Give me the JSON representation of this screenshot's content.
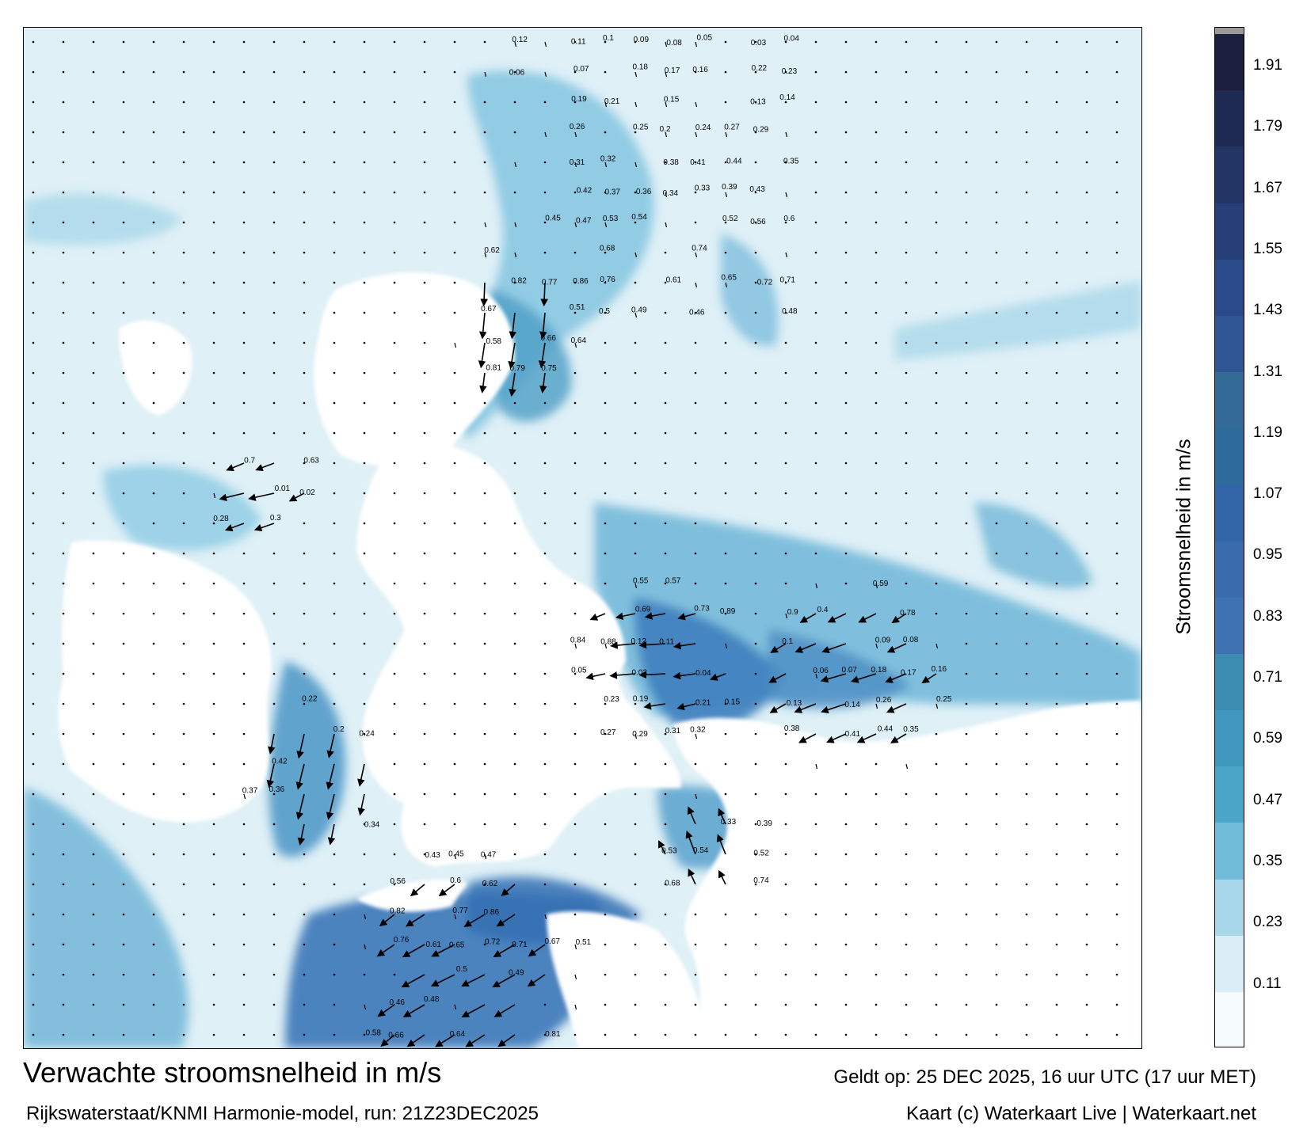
{
  "map": {
    "land_color": "#ffffff",
    "sea_color_low": "#eaf5fa",
    "sea_color_high": "#2a63a3",
    "arrow_color": "#000000",
    "velocity_labels": [
      "0.12",
      "0.11",
      "0.1",
      "0.09",
      "0.08",
      "0.05",
      "0.03",
      "0.04",
      "0.06",
      "0.07",
      "0.18",
      "0.17",
      "0.16",
      "0.22",
      "0.23",
      "0.19",
      "0.21",
      "0.15",
      "0.13",
      "0.14",
      "0.26",
      "0.25",
      "0.2",
      "0.24",
      "0.27",
      "0.29",
      "0.31",
      "0.32",
      "0.38",
      "0.41",
      "0.44",
      "0.35",
      "0.42",
      "0.37",
      "0.36",
      "0.34",
      "0.33",
      "0.39",
      "0.43",
      "0.45",
      "0.47",
      "0.53",
      "0.54",
      "0.52",
      "0.56",
      "0.6",
      "0.62",
      "0.68",
      "0.74",
      "0.82",
      "0.77",
      "0.86",
      "0.76",
      "0.61",
      "0.65",
      "0.72",
      "0.71",
      "0.67",
      "0.51",
      "0.5",
      "0.49",
      "0.46",
      "0.48",
      "0.58",
      "0.66",
      "0.64",
      "0.81",
      "0.79",
      "0.75",
      "0.7",
      "0.63",
      "0.01",
      "0.02",
      "0.28",
      "0.3",
      "0.55",
      "0.57",
      "0.59",
      "0.69",
      "0.73",
      "0.89",
      "0.9",
      "0.4",
      "0.78",
      "0.84",
      "0.88"
    ]
  },
  "colorbar": {
    "label": "Stroomsnelheid in m/s",
    "ticks": [
      "1.91",
      "1.79",
      "1.67",
      "1.55",
      "1.43",
      "1.31",
      "1.19",
      "1.07",
      "0.95",
      "0.83",
      "0.71",
      "0.59",
      "0.47",
      "0.35",
      "0.23",
      "0.11"
    ],
    "colors": [
      "#1b1f3d",
      "#1e2a52",
      "#223565",
      "#263f78",
      "#2b4a8a",
      "#2f5595",
      "#346b96",
      "#2f6a9c",
      "#3265a8",
      "#3a6cad",
      "#3e72b0",
      "#3c8bb0",
      "#3f97bd",
      "#4aa5c9",
      "#6fbbd8",
      "#a8d6ea",
      "#d9eef7",
      "#f5fbfd"
    ]
  },
  "footer": {
    "title": "Verwachte stroomsnelheid in m/s",
    "model": "Rijkswaterstaat/KNMI Harmonie-model, run: 21Z23DEC2025",
    "valid": "Geldt op: 25 DEC 2025, 16 uur UTC (17 uur MET)",
    "credit": "Kaart (c) Waterkaart Live | Waterkaart.net"
  }
}
